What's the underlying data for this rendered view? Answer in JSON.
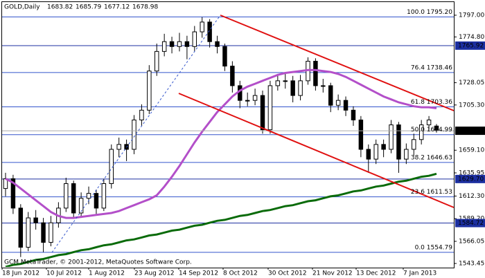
{
  "chart_data": {
    "type": "candlestick",
    "symbol": "GOLD,Daily",
    "ohlc": [
      1683.82,
      1685.79,
      1677.12,
      1678.98
    ],
    "footer": "GCM MetaTrader, © 2001-2012, MetaQuotes Software Corp.",
    "x_labels": [
      "18 Jun 2012",
      "10 Jul 2012",
      "1 Aug 2012",
      "23 Aug 2012",
      "14 Sep 2012",
      "8 Oct 2012",
      "30 Oct 2012",
      "21 Nov 2012",
      "13 Dec 2012",
      "7 Jan 2013"
    ],
    "open": [
      1620,
      1630,
      1600,
      1560,
      1590,
      1585,
      1565,
      1585,
      1600,
      1625,
      1595,
      1610,
      1615,
      1600,
      1625,
      1660,
      1665,
      1660,
      1690,
      1700,
      1740,
      1760,
      1770,
      1765,
      1770,
      1765,
      1780,
      1790,
      1770,
      1765,
      1745,
      1725,
      1710,
      1710,
      1715,
      1680,
      1725,
      1730,
      1730,
      1715,
      1730,
      1750,
      1725,
      1725,
      1705,
      1710,
      1700,
      1690,
      1660,
      1650,
      1665,
      1660,
      1685,
      1650,
      1660,
      1670,
      1685,
      1683.82
    ],
    "high": [
      1636,
      1634,
      1604,
      1596,
      1598,
      1590,
      1592,
      1606,
      1631,
      1628,
      1616,
      1622,
      1619,
      1630,
      1665,
      1672,
      1670,
      1695,
      1706,
      1746,
      1768,
      1778,
      1775,
      1779,
      1776,
      1786,
      1795,
      1793,
      1776,
      1768,
      1750,
      1730,
      1718,
      1722,
      1720,
      1730,
      1737,
      1738,
      1735,
      1736,
      1754,
      1753,
      1732,
      1728,
      1716,
      1714,
      1704,
      1694,
      1665,
      1670,
      1670,
      1690,
      1688,
      1666,
      1676,
      1690,
      1694,
      1685.79
    ],
    "low": [
      1612,
      1594,
      1550,
      1556,
      1578,
      1555,
      1561,
      1580,
      1596,
      1590,
      1590,
      1604,
      1594,
      1597,
      1620,
      1652,
      1648,
      1655,
      1684,
      1696,
      1735,
      1755,
      1758,
      1760,
      1752,
      1760,
      1774,
      1764,
      1758,
      1740,
      1718,
      1702,
      1704,
      1705,
      1676,
      1676,
      1720,
      1722,
      1708,
      1710,
      1726,
      1720,
      1718,
      1698,
      1700,
      1694,
      1684,
      1652,
      1636,
      1645,
      1652,
      1656,
      1636,
      1645,
      1654,
      1665,
      1680,
      1677.12
    ],
    "close": [
      1630,
      1600,
      1560,
      1590,
      1585,
      1565,
      1585,
      1600,
      1625,
      1595,
      1610,
      1615,
      1600,
      1625,
      1660,
      1665,
      1660,
      1690,
      1700,
      1740,
      1760,
      1770,
      1765,
      1770,
      1765,
      1780,
      1790,
      1770,
      1765,
      1745,
      1725,
      1710,
      1710,
      1715,
      1680,
      1725,
      1730,
      1730,
      1715,
      1730,
      1750,
      1725,
      1725,
      1705,
      1710,
      1700,
      1690,
      1660,
      1650,
      1665,
      1660,
      1685,
      1650,
      1660,
      1670,
      1685,
      1690,
      1678.98
    ],
    "series": [
      {
        "color": "#b34fc9",
        "values": [
          1630,
          1626,
          1620,
          1614,
          1608,
          1602,
          1596,
          1592,
          1590,
          1590,
          1591,
          1592,
          1593,
          1594,
          1595,
          1597,
          1600,
          1603,
          1606,
          1609,
          1613,
          1622,
          1632,
          1643,
          1655,
          1667,
          1678,
          1688,
          1698,
          1706,
          1714,
          1720,
          1724,
          1727,
          1730,
          1733,
          1736,
          1738,
          1739,
          1740,
          1741,
          1741,
          1740,
          1739,
          1737,
          1734,
          1730,
          1726,
          1722,
          1718,
          1714,
          1711,
          1708,
          1706,
          1704,
          1703,
          1703,
          1702
        ]
      },
      {
        "color": "#0a6b0a",
        "values": [
          1540,
          1542,
          1543,
          1545,
          1547,
          1548,
          1550,
          1552,
          1553,
          1555,
          1557,
          1558,
          1560,
          1562,
          1563,
          1565,
          1567,
          1568,
          1570,
          1572,
          1573,
          1575,
          1577,
          1578,
          1580,
          1582,
          1583,
          1585,
          1587,
          1588,
          1590,
          1592,
          1593,
          1595,
          1597,
          1598,
          1600,
          1602,
          1603,
          1605,
          1607,
          1608,
          1610,
          1612,
          1613,
          1615,
          1617,
          1618,
          1620,
          1622,
          1623,
          1625,
          1627,
          1628,
          1630,
          1632,
          1633,
          1635
        ]
      }
    ],
    "fib_levels": [
      {
        "value": 1795.2,
        "label": "100.0 1795.20"
      },
      {
        "value": 1738.46,
        "label": "76.4 1738.46"
      },
      {
        "value": 1703.36,
        "label": "61.8 1703.36"
      },
      {
        "value": 1674.99,
        "label": "50.0 1674.99"
      },
      {
        "value": 1646.63,
        "label": "38.2 1646.63"
      },
      {
        "value": 1611.53,
        "label": "23.6 1611.53"
      },
      {
        "value": 1554.79,
        "label": "0.0 1554.79"
      }
    ],
    "levels": [
      1765.92,
      {
        "value": 1629.7,
        "label": "1629.70"
      },
      1584.72
    ],
    "current_price": 1678.98,
    "ylim": [
      1539.9,
      1810.4
    ],
    "yticks": [
      {
        "value": 1797.0,
        "label": "1797.00"
      },
      {
        "value": 1774.8,
        "label": "1774.80"
      },
      1728.05,
      {
        "value": 1705.3,
        "label": "1705.30"
      },
      {
        "value": 1659.1,
        "label": "1659.10"
      },
      1635.95,
      {
        "value": 1612.3,
        "label": "1612.30"
      },
      {
        "value": 1589.2,
        "label": "1589.20"
      },
      1566.05,
      1543.45
    ]
  }
}
